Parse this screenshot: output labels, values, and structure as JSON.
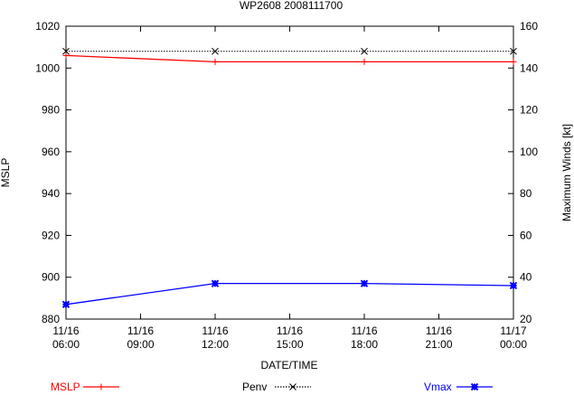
{
  "chart_data": {
    "type": "line",
    "title": "WP2608 2008111700",
    "xlabel": "DATE/TIME",
    "ylabel": "MSLP",
    "y2label": "Maximum Winds [kt]",
    "x_ticks": [
      [
        "11/16",
        "06:00"
      ],
      [
        "11/16",
        "09:00"
      ],
      [
        "11/16",
        "12:00"
      ],
      [
        "11/16",
        "15:00"
      ],
      [
        "11/16",
        "18:00"
      ],
      [
        "11/16",
        "21:00"
      ],
      [
        "11/17",
        "00:00"
      ]
    ],
    "xlim": [
      0,
      18
    ],
    "ylim": [
      880,
      1020
    ],
    "y2lim": [
      20,
      160
    ],
    "yticks": [
      880,
      900,
      920,
      940,
      960,
      980,
      1000,
      1020
    ],
    "y2ticks": [
      20,
      40,
      60,
      80,
      100,
      120,
      140,
      160
    ],
    "grid": false,
    "legend_position": "bottom",
    "series": [
      {
        "name": "MSLP",
        "axis": "left",
        "color": "#ff0000",
        "marker": "plus",
        "line": "solid",
        "x": [
          0,
          6,
          12,
          18
        ],
        "y": [
          1006,
          1003,
          1003,
          1003
        ]
      },
      {
        "name": "Penv",
        "axis": "left",
        "color": "#000000",
        "marker": "x",
        "line": "dotted",
        "x": [
          0,
          6,
          12,
          18
        ],
        "y": [
          1008,
          1008,
          1008,
          1008
        ]
      },
      {
        "name": "Vmax",
        "axis": "right",
        "color": "#0000ff",
        "marker": "star",
        "line": "solid",
        "x": [
          0,
          6,
          12,
          18
        ],
        "y": [
          27,
          37,
          37,
          36
        ]
      }
    ]
  }
}
